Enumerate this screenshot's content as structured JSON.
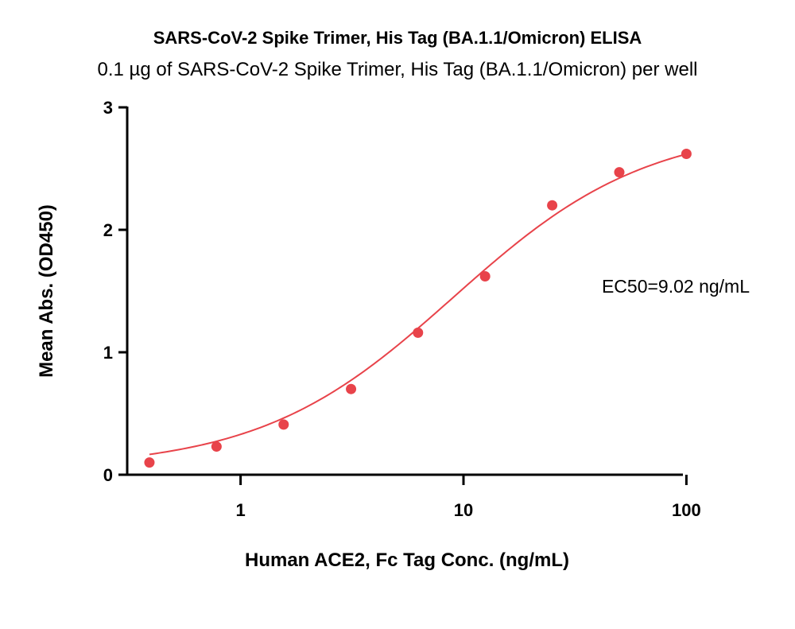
{
  "chart_data": {
    "type": "scatter",
    "title": "SARS-CoV-2 Spike Trimer, His Tag (BA.1.1/Omicron) ELISA",
    "subtitle": "0.1 µg of SARS-CoV-2 Spike Trimer, His Tag (BA.1.1/Omicron) per well",
    "xlabel": "Human ACE2, Fc Tag Conc. (ng/mL)",
    "ylabel": "Mean Abs. (OD450)",
    "x_scale": "log",
    "xlim": [
      0.31,
      110
    ],
    "ylim": [
      0,
      3
    ],
    "x_ticks": [
      {
        "value": 1,
        "label": "1"
      },
      {
        "value": 10,
        "label": "10"
      },
      {
        "value": 100,
        "label": "100"
      }
    ],
    "y_ticks": [
      {
        "value": 0,
        "label": "0"
      },
      {
        "value": 1,
        "label": "1"
      },
      {
        "value": 2,
        "label": "2"
      },
      {
        "value": 3,
        "label": "3"
      }
    ],
    "series": [
      {
        "x": [
          0.39,
          0.78,
          1.56,
          3.13,
          6.25,
          12.5,
          25,
          50,
          100
        ],
        "y": [
          0.1,
          0.23,
          0.41,
          0.7,
          1.16,
          1.62,
          2.2,
          2.47,
          2.62
        ]
      }
    ],
    "fit": {
      "model": "4PL",
      "bottom": 0.05,
      "top": 2.85,
      "ec50": 9.02,
      "hill": 1.0
    },
    "annotation": "EC50=9.02 ng/mL",
    "color": "#e8434a",
    "grid": false
  }
}
